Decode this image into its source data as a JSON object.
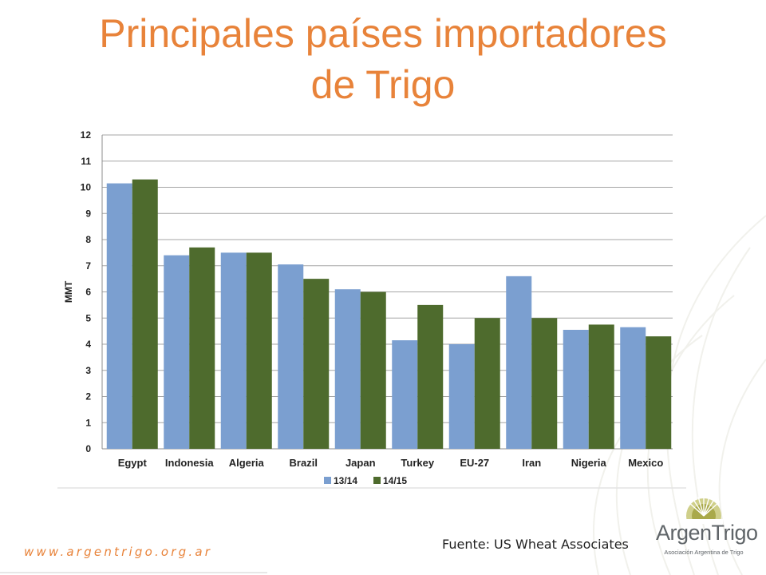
{
  "slide": {
    "title_line1": "Principales países importadores",
    "title_line2": "de Trigo",
    "source": "Fuente: US Wheat Associates",
    "website": "www.argentrigo.org.ar"
  },
  "logo": {
    "name": "ArgenTrigo",
    "subtitle": "Asociación Argentina de Trigo"
  },
  "colors": {
    "title": "#e8833a",
    "series_1": "#7b9fd0",
    "series_2": "#4e6b2d"
  },
  "chart_data": {
    "type": "bar",
    "categories": [
      "Egypt",
      "Indonesia",
      "Algeria",
      "Brazil",
      "Japan",
      "Turkey",
      "EU-27",
      "Iran",
      "Nigeria",
      "Mexico"
    ],
    "series": [
      {
        "name": "13/14",
        "values": [
          10.15,
          7.4,
          7.5,
          7.05,
          6.1,
          4.15,
          4.0,
          6.6,
          4.55,
          4.65
        ]
      },
      {
        "name": "14/15",
        "values": [
          10.3,
          7.7,
          7.5,
          6.5,
          6.0,
          5.5,
          5.0,
          5.0,
          4.75,
          4.3
        ]
      }
    ],
    "ylabel": "MMT",
    "ylim": [
      0,
      12
    ],
    "yticks": [
      0,
      1,
      2,
      3,
      4,
      5,
      6,
      7,
      8,
      9,
      10,
      11,
      12
    ],
    "grid": true,
    "legend": "bottom"
  }
}
